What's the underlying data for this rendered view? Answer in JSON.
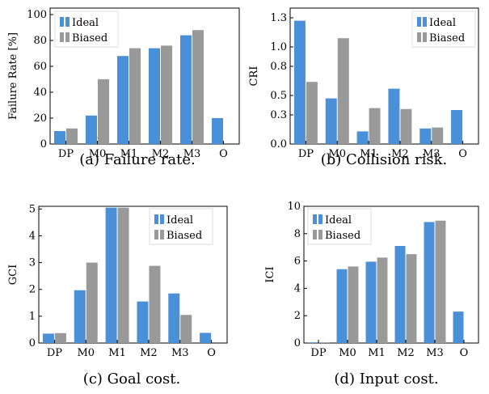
{
  "colors": {
    "ideal": "#4a90d9",
    "biased": "#999999"
  },
  "chart_data": [
    {
      "type": "bar",
      "caption": "(a) Failure rate.",
      "ylabel": "Failure Rate [%]",
      "categories": [
        "DP",
        "M0",
        "M1",
        "M2",
        "M3",
        "O"
      ],
      "series": [
        {
          "name": "Ideal",
          "values": [
            10,
            22,
            68,
            74,
            84,
            20
          ]
        },
        {
          "name": "Biased",
          "values": [
            12,
            50,
            74,
            76,
            88,
            null
          ]
        }
      ],
      "ylim": [
        0,
        105
      ],
      "yticks": [
        0,
        20,
        40,
        60,
        80,
        100
      ],
      "ytick_labels": [
        "0",
        "20",
        "40",
        "60",
        "80",
        "100"
      ],
      "legend": "top-left",
      "grid": false
    },
    {
      "type": "bar",
      "caption": "(b) Collision risk.",
      "ylabel": "CRI",
      "categories": [
        "DP",
        "M0",
        "M1",
        "M2",
        "M3",
        "O"
      ],
      "series": [
        {
          "name": "Ideal",
          "values": [
            1.27,
            0.47,
            0.13,
            0.57,
            0.16,
            0.35
          ]
        },
        {
          "name": "Biased",
          "values": [
            0.64,
            1.09,
            0.37,
            0.36,
            0.17,
            null
          ]
        }
      ],
      "ylim": [
        0,
        1.4
      ],
      "yticks": [
        0,
        0.3,
        0.5,
        0.8,
        1.0,
        1.3
      ],
      "ytick_labels": [
        "0.0",
        "0.3",
        "0.5",
        "0.8",
        "1.0",
        "1.3"
      ],
      "legend": "top-right",
      "grid": false
    },
    {
      "type": "bar",
      "caption": "(c) Goal cost.",
      "ylabel": "GCI",
      "categories": [
        "DP",
        "M0",
        "M1",
        "M2",
        "M3",
        "O"
      ],
      "series": [
        {
          "name": "Ideal",
          "values": [
            0.35,
            1.97,
            5.05,
            1.55,
            1.85,
            0.38
          ]
        },
        {
          "name": "Biased",
          "values": [
            0.37,
            3.0,
            5.05,
            2.88,
            1.05,
            null
          ]
        }
      ],
      "ylim": [
        0,
        5.1
      ],
      "yticks": [
        0,
        1,
        2,
        3,
        4,
        5
      ],
      "ytick_labels": [
        "0",
        "1",
        "2",
        "3",
        "4",
        "5"
      ],
      "legend": "top-right",
      "grid": false
    },
    {
      "type": "bar",
      "caption": "(d) Input cost.",
      "ylabel": "ICI",
      "categories": [
        "DP",
        "M0",
        "M1",
        "M2",
        "M3",
        "O"
      ],
      "series": [
        {
          "name": "Ideal",
          "values": [
            0.05,
            5.4,
            5.95,
            7.1,
            8.85,
            2.3
          ]
        },
        {
          "name": "Biased",
          "values": [
            0.05,
            5.6,
            6.25,
            6.5,
            8.95,
            null
          ]
        }
      ],
      "ylim": [
        0,
        10
      ],
      "yticks": [
        0,
        2,
        4,
        6,
        8,
        10
      ],
      "ytick_labels": [
        "0",
        "2",
        "4",
        "6",
        "8",
        "10"
      ],
      "legend": "top-left",
      "grid": false
    }
  ]
}
